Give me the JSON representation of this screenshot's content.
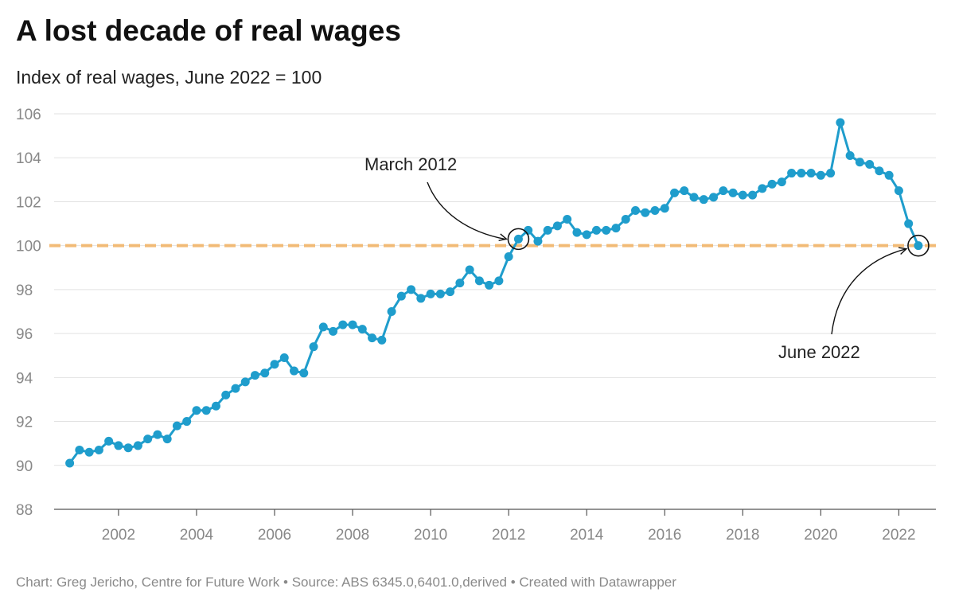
{
  "chart_data": {
    "type": "line",
    "title": "A lost decade of real wages",
    "subtitle": "Index of real wages, June 2022 = 100",
    "footer": "Chart: Greg Jericho, Centre for Future Work • Source: ABS 6345.0,6401.0,derived • Created with Datawrapper",
    "xlim": [
      2000.35,
      2022.95
    ],
    "ylim": [
      88,
      106
    ],
    "x_ticks": [
      2002,
      2004,
      2006,
      2008,
      2010,
      2012,
      2014,
      2016,
      2018,
      2020,
      2022
    ],
    "y_ticks": [
      88,
      90,
      92,
      94,
      96,
      98,
      100,
      102,
      104,
      106
    ],
    "grid": true,
    "reference_line": {
      "y": 100,
      "color": "#f2b56b",
      "style": "dashed"
    },
    "series": [
      {
        "color": "#1f9dcc",
        "points": [
          {
            "x": 2000.75,
            "y": 90.1
          },
          {
            "x": 2001.0,
            "y": 90.7
          },
          {
            "x": 2001.25,
            "y": 90.6
          },
          {
            "x": 2001.5,
            "y": 90.7
          },
          {
            "x": 2001.75,
            "y": 91.1
          },
          {
            "x": 2002.0,
            "y": 90.9
          },
          {
            "x": 2002.25,
            "y": 90.8
          },
          {
            "x": 2002.5,
            "y": 90.9
          },
          {
            "x": 2002.75,
            "y": 91.2
          },
          {
            "x": 2003.0,
            "y": 91.4
          },
          {
            "x": 2003.25,
            "y": 91.2
          },
          {
            "x": 2003.5,
            "y": 91.8
          },
          {
            "x": 2003.75,
            "y": 92.0
          },
          {
            "x": 2004.0,
            "y": 92.5
          },
          {
            "x": 2004.25,
            "y": 92.5
          },
          {
            "x": 2004.5,
            "y": 92.7
          },
          {
            "x": 2004.75,
            "y": 93.2
          },
          {
            "x": 2005.0,
            "y": 93.5
          },
          {
            "x": 2005.25,
            "y": 93.8
          },
          {
            "x": 2005.5,
            "y": 94.1
          },
          {
            "x": 2005.75,
            "y": 94.2
          },
          {
            "x": 2006.0,
            "y": 94.6
          },
          {
            "x": 2006.25,
            "y": 94.9
          },
          {
            "x": 2006.5,
            "y": 94.3
          },
          {
            "x": 2006.75,
            "y": 94.2
          },
          {
            "x": 2007.0,
            "y": 95.4
          },
          {
            "x": 2007.25,
            "y": 96.3
          },
          {
            "x": 2007.5,
            "y": 96.1
          },
          {
            "x": 2007.75,
            "y": 96.4
          },
          {
            "x": 2008.0,
            "y": 96.4
          },
          {
            "x": 2008.25,
            "y": 96.2
          },
          {
            "x": 2008.5,
            "y": 95.8
          },
          {
            "x": 2008.75,
            "y": 95.7
          },
          {
            "x": 2009.0,
            "y": 97.0
          },
          {
            "x": 2009.25,
            "y": 97.7
          },
          {
            "x": 2009.5,
            "y": 98.0
          },
          {
            "x": 2009.75,
            "y": 97.6
          },
          {
            "x": 2010.0,
            "y": 97.8
          },
          {
            "x": 2010.25,
            "y": 97.8
          },
          {
            "x": 2010.5,
            "y": 97.9
          },
          {
            "x": 2010.75,
            "y": 98.3
          },
          {
            "x": 2011.0,
            "y": 98.9
          },
          {
            "x": 2011.25,
            "y": 98.4
          },
          {
            "x": 2011.5,
            "y": 98.2
          },
          {
            "x": 2011.75,
            "y": 98.4
          },
          {
            "x": 2012.0,
            "y": 99.5
          },
          {
            "x": 2012.25,
            "y": 100.3
          },
          {
            "x": 2012.5,
            "y": 100.7
          },
          {
            "x": 2012.75,
            "y": 100.2
          },
          {
            "x": 2013.0,
            "y": 100.7
          },
          {
            "x": 2013.25,
            "y": 100.9
          },
          {
            "x": 2013.5,
            "y": 101.2
          },
          {
            "x": 2013.75,
            "y": 100.6
          },
          {
            "x": 2014.0,
            "y": 100.5
          },
          {
            "x": 2014.25,
            "y": 100.7
          },
          {
            "x": 2014.5,
            "y": 100.7
          },
          {
            "x": 2014.75,
            "y": 100.8
          },
          {
            "x": 2015.0,
            "y": 101.2
          },
          {
            "x": 2015.25,
            "y": 101.6
          },
          {
            "x": 2015.5,
            "y": 101.5
          },
          {
            "x": 2015.75,
            "y": 101.6
          },
          {
            "x": 2016.0,
            "y": 101.7
          },
          {
            "x": 2016.25,
            "y": 102.4
          },
          {
            "x": 2016.5,
            "y": 102.5
          },
          {
            "x": 2016.75,
            "y": 102.2
          },
          {
            "x": 2017.0,
            "y": 102.1
          },
          {
            "x": 2017.25,
            "y": 102.2
          },
          {
            "x": 2017.5,
            "y": 102.5
          },
          {
            "x": 2017.75,
            "y": 102.4
          },
          {
            "x": 2018.0,
            "y": 102.3
          },
          {
            "x": 2018.25,
            "y": 102.3
          },
          {
            "x": 2018.5,
            "y": 102.6
          },
          {
            "x": 2018.75,
            "y": 102.8
          },
          {
            "x": 2019.0,
            "y": 102.9
          },
          {
            "x": 2019.25,
            "y": 103.3
          },
          {
            "x": 2019.5,
            "y": 103.3
          },
          {
            "x": 2019.75,
            "y": 103.3
          },
          {
            "x": 2020.0,
            "y": 103.2
          },
          {
            "x": 2020.25,
            "y": 103.3
          },
          {
            "x": 2020.5,
            "y": 105.6
          },
          {
            "x": 2020.75,
            "y": 104.1
          },
          {
            "x": 2021.0,
            "y": 103.8
          },
          {
            "x": 2021.25,
            "y": 103.7
          },
          {
            "x": 2021.5,
            "y": 103.4
          },
          {
            "x": 2021.75,
            "y": 103.2
          },
          {
            "x": 2022.0,
            "y": 102.5
          },
          {
            "x": 2022.25,
            "y": 101.0
          },
          {
            "x": 2022.5,
            "y": 100.0
          }
        ]
      }
    ],
    "annotations": [
      {
        "text": "March 2012",
        "x": 2012.25,
        "y": 100.3
      },
      {
        "text": "June 2022",
        "x": 2022.5,
        "y": 100.0
      }
    ]
  }
}
